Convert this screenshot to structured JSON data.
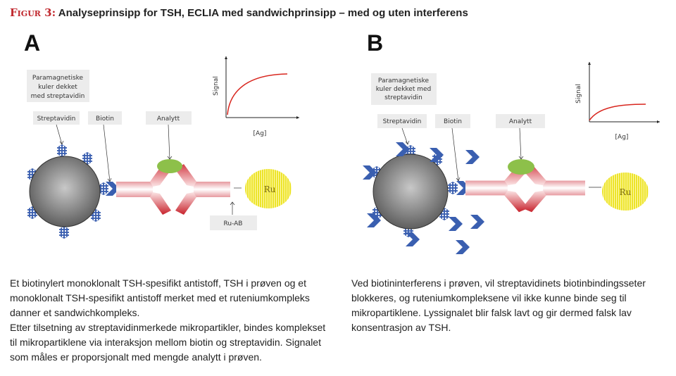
{
  "figure": {
    "label": "Figur 3:",
    "title": "Analyseprinsipp for TSH, ECLIA med sandwichprinsipp – med og uten interferens"
  },
  "panel_a": {
    "letter": "A",
    "bead_label": [
      "Paramagnetiske",
      "kuler dekket",
      "med streptavidin"
    ],
    "streptavidin_label": "Streptavidin",
    "biotin_label": "Biotin",
    "analyte_label": "Analytt",
    "ru_label": "Ru",
    "ru_ab_label": "Ru-AB",
    "graph": {
      "ylabel": "Signal",
      "xlabel": "[Ag]"
    },
    "caption_lines": [
      "Et biotinylert monoklonalt TSH-spesifikt antistoff, TSH i prøven og et monoklonalt TSH-spesifikt antistoff merket med et ruteniumkompleks danner et sandwichkompleks.",
      "Etter tilsetning av streptavidinmerkede mikropartikler, bindes komplekset til mikropartiklene via interaksjon mellom biotin og streptavidin. Signalet som måles er proporsjonalt med mengde analytt i prøven."
    ]
  },
  "panel_b": {
    "letter": "B",
    "bead_label": [
      "Paramagnetiske",
      "kuler dekket med",
      "streptavidin"
    ],
    "streptavidin_label": "Streptavidin",
    "biotin_label": "Biotin",
    "analyte_label": "Analytt",
    "ru_label": "Ru",
    "graph": {
      "ylabel": "Signal",
      "xlabel": "[Ag]"
    },
    "caption": "Ved biotininterferens i prøven, vil streptavidinets biotinbindingsseter blokkeres, og ruteniumkompleksene vil ikke kunne binde seg til mikropartiklene. Lyssignalet blir falsk lavt og gir dermed falsk lav konsentrasjon av TSH."
  },
  "colors": {
    "figure_label": "#c0272d",
    "biotin": "#3a5fb0",
    "antibody": "#d9474f",
    "analyte": "#8dc04a",
    "ruthenium": "#ece42a",
    "curve": "#d8261e"
  }
}
